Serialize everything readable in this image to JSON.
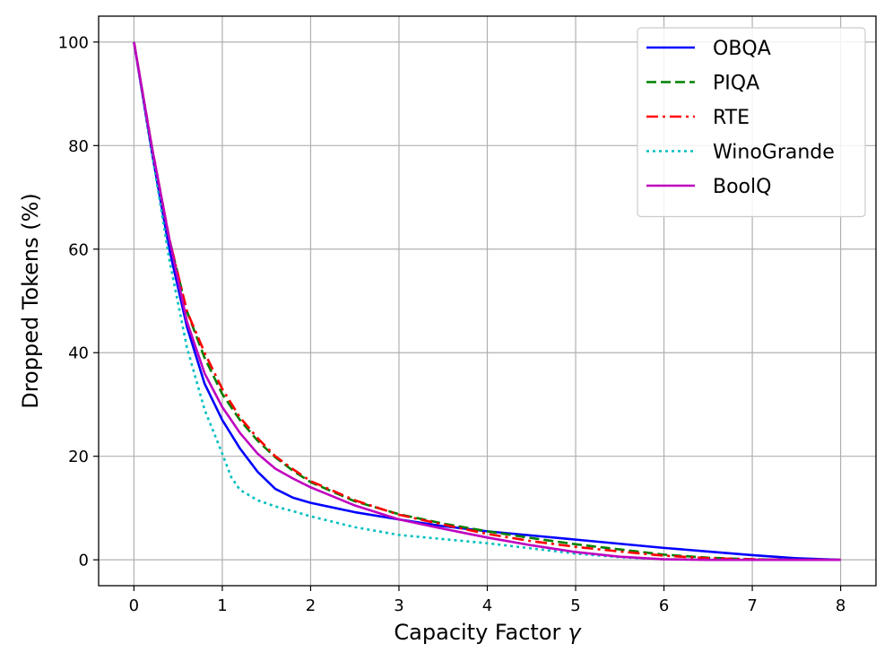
{
  "chart_data": {
    "type": "line",
    "title": "",
    "xlabel": "Capacity Factor",
    "xlabel_symbol": "γ",
    "ylabel": "Dropped Tokens (%)",
    "xlim": [
      -0.4,
      8.4
    ],
    "ylim": [
      -5,
      105
    ],
    "xticks": [
      0,
      1,
      2,
      3,
      4,
      5,
      6,
      7,
      8
    ],
    "yticks": [
      0,
      20,
      40,
      60,
      80,
      100
    ],
    "grid": true,
    "legend_position": "top-right",
    "series": [
      {
        "name": "OBQA",
        "color": "#0000ff",
        "style": "solid",
        "x": [
          0,
          0.2,
          0.4,
          0.6,
          0.8,
          1.0,
          1.2,
          1.4,
          1.6,
          1.8,
          2.0,
          2.5,
          3.0,
          3.5,
          4.0,
          4.5,
          5.0,
          5.5,
          6.0,
          6.5,
          7.0,
          7.5,
          8.0
        ],
        "y": [
          100,
          79,
          60,
          45,
          34,
          27,
          21.5,
          17,
          13.7,
          12,
          11,
          9.2,
          7.8,
          6.5,
          5.5,
          4.7,
          3.9,
          3.1,
          2.3,
          1.6,
          0.9,
          0.3,
          0
        ]
      },
      {
        "name": "PIQA",
        "color": "#008000",
        "style": "dashed",
        "x": [
          0,
          0.2,
          0.4,
          0.6,
          0.8,
          1.0,
          1.2,
          1.4,
          1.6,
          1.8,
          2.0,
          2.5,
          3.0,
          3.5,
          4.0,
          4.5,
          5.0,
          5.5,
          6.0,
          6.5,
          7.0,
          7.5,
          8.0
        ],
        "y": [
          100,
          80,
          62,
          48,
          39,
          32,
          27,
          23,
          19.8,
          17.2,
          15,
          11.3,
          8.8,
          7,
          5.5,
          4.2,
          3,
          2,
          1,
          0.4,
          0.1,
          0,
          0
        ]
      },
      {
        "name": "RTE",
        "color": "#ff0000",
        "style": "dashdot",
        "x": [
          0,
          0.2,
          0.4,
          0.6,
          0.8,
          1.0,
          1.2,
          1.4,
          1.6,
          1.8,
          2.0,
          2.5,
          3.0,
          3.5,
          4.0,
          4.5,
          5.0,
          5.5,
          6.0,
          6.5,
          7.0,
          7.5,
          8.0
        ],
        "y": [
          100,
          80,
          62,
          48,
          40,
          33,
          27.5,
          23.5,
          20,
          17.5,
          15.2,
          11.5,
          8.7,
          6.8,
          5,
          3.6,
          2.5,
          1.6,
          0.8,
          0.3,
          0.1,
          0,
          0
        ]
      },
      {
        "name": "WinoGrande",
        "color": "#00bfbf",
        "style": "dotted",
        "x": [
          0,
          0.2,
          0.4,
          0.6,
          0.8,
          1.0,
          1.1,
          1.2,
          1.4,
          1.6,
          1.8,
          2.0,
          2.5,
          3.0,
          3.5,
          4.0,
          4.5,
          5.0,
          5.5,
          6.0,
          6.5,
          7.0,
          7.5,
          8.0
        ],
        "y": [
          100,
          79,
          58,
          41,
          29,
          20.5,
          16,
          13.5,
          11.5,
          10.3,
          9.4,
          8.4,
          6.3,
          4.8,
          4,
          3.2,
          2.2,
          1.2,
          0.5,
          0.1,
          0,
          0,
          0,
          0
        ]
      },
      {
        "name": "BoolQ",
        "color": "#bf00bf",
        "style": "solid",
        "x": [
          0,
          0.2,
          0.4,
          0.6,
          0.8,
          1.0,
          1.2,
          1.4,
          1.6,
          1.8,
          2.0,
          2.5,
          3.0,
          3.5,
          4.0,
          4.5,
          5.0,
          5.5,
          6.0,
          6.5,
          7.0,
          7.5,
          8.0
        ],
        "y": [
          100,
          80,
          62,
          46,
          36,
          29.5,
          24.5,
          20.5,
          17.6,
          15.7,
          14,
          10.5,
          7.8,
          6,
          4.3,
          2.8,
          1.5,
          0.6,
          0.1,
          0,
          0,
          0,
          0
        ]
      }
    ]
  }
}
